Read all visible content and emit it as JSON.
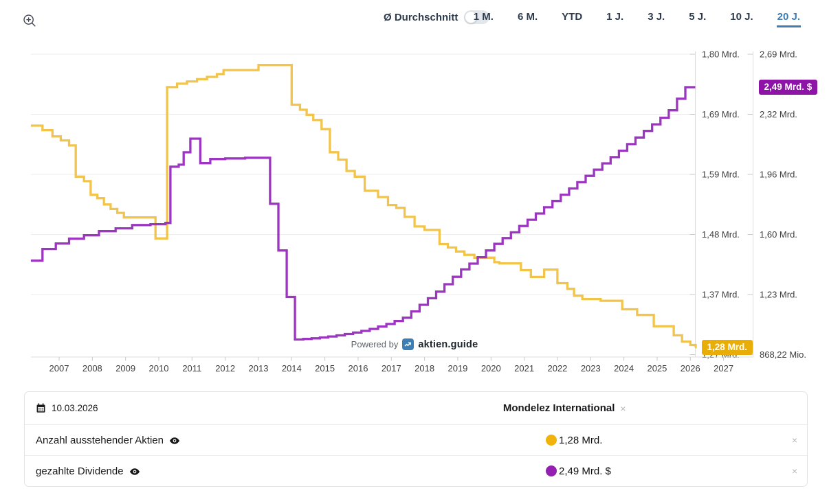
{
  "colors": {
    "accent_blue": "#3e7cb1",
    "series_yellow": "#f3c44a",
    "series_yellow_strong": "#e9ad08",
    "series_purple": "#9c35bf",
    "series_purple_strong": "#8d14a6",
    "gridline": "#ededed",
    "axis_line": "#dcdcdc",
    "tick": "#c9c9c9",
    "axis_text": "#3d3d3d"
  },
  "toolbar": {
    "average_label": "Ø Durchschnitt",
    "ranges": [
      {
        "label": "1 M.",
        "active": false
      },
      {
        "label": "6 M.",
        "active": false
      },
      {
        "label": "YTD",
        "active": false
      },
      {
        "label": "1 J.",
        "active": false
      },
      {
        "label": "3 J.",
        "active": false
      },
      {
        "label": "5 J.",
        "active": false
      },
      {
        "label": "10 J.",
        "active": false
      },
      {
        "label": "20 J.",
        "active": true
      }
    ]
  },
  "chart_data": {
    "type": "line",
    "step": true,
    "grid": true,
    "x_ticks": [
      2007,
      2008,
      2009,
      2010,
      2011,
      2012,
      2013,
      2014,
      2015,
      2016,
      2017,
      2018,
      2019,
      2020,
      2021,
      2022,
      2023,
      2024,
      2025,
      2026,
      2027
    ],
    "x_range": [
      2006.15,
      2026.16
    ],
    "left_axis": {
      "labels": [
        "1,80 Mrd.",
        "1,69 Mrd.",
        "1,59 Mrd.",
        "1,48 Mrd.",
        "1,37 Mrd.",
        "1,27 Mrd."
      ],
      "min": 1.27,
      "max": 1.8,
      "unit": "Mrd."
    },
    "right_axis": {
      "labels": [
        "2,69 Mrd.",
        "2,32 Mrd.",
        "1,96 Mrd.",
        "1,60 Mrd.",
        "1,23 Mrd.",
        "868,22 Mio."
      ],
      "min": 0.86822,
      "max": 2.69,
      "unit": "Mrd. $"
    },
    "series": [
      {
        "name": "Anzahl ausstehender Aktien",
        "axis": "left",
        "color": "#f3c44a",
        "current_value": "1,28 Mrd.",
        "points": [
          [
            2006.15,
            1.674
          ],
          [
            2006.5,
            1.666
          ],
          [
            2006.8,
            1.655
          ],
          [
            2007.05,
            1.648
          ],
          [
            2007.3,
            1.639
          ],
          [
            2007.5,
            1.584
          ],
          [
            2007.75,
            1.576
          ],
          [
            2007.95,
            1.552
          ],
          [
            2008.15,
            1.546
          ],
          [
            2008.35,
            1.535
          ],
          [
            2008.55,
            1.527
          ],
          [
            2008.75,
            1.52
          ],
          [
            2008.95,
            1.512
          ],
          [
            2009.9,
            1.475
          ],
          [
            2010.25,
            1.742
          ],
          [
            2010.55,
            1.748
          ],
          [
            2010.85,
            1.752
          ],
          [
            2011.15,
            1.756
          ],
          [
            2011.45,
            1.76
          ],
          [
            2011.75,
            1.765
          ],
          [
            2011.95,
            1.772
          ],
          [
            2013.0,
            1.781
          ],
          [
            2014.0,
            1.711
          ],
          [
            2014.25,
            1.702
          ],
          [
            2014.45,
            1.693
          ],
          [
            2014.65,
            1.684
          ],
          [
            2014.9,
            1.668
          ],
          [
            2015.15,
            1.627
          ],
          [
            2015.4,
            1.614
          ],
          [
            2015.65,
            1.594
          ],
          [
            2015.9,
            1.584
          ],
          [
            2016.2,
            1.559
          ],
          [
            2016.6,
            1.548
          ],
          [
            2016.9,
            1.534
          ],
          [
            2017.15,
            1.529
          ],
          [
            2017.4,
            1.513
          ],
          [
            2017.7,
            1.496
          ],
          [
            2018.0,
            1.49
          ],
          [
            2018.45,
            1.465
          ],
          [
            2018.7,
            1.459
          ],
          [
            2018.95,
            1.452
          ],
          [
            2019.2,
            1.446
          ],
          [
            2019.5,
            1.441
          ],
          [
            2020.1,
            1.433
          ],
          [
            2020.25,
            1.431
          ],
          [
            2020.9,
            1.419
          ],
          [
            2021.2,
            1.407
          ],
          [
            2021.6,
            1.42
          ],
          [
            2022.0,
            1.396
          ],
          [
            2022.3,
            1.386
          ],
          [
            2022.5,
            1.374
          ],
          [
            2022.75,
            1.368
          ],
          [
            2023.3,
            1.365
          ],
          [
            2023.95,
            1.35
          ],
          [
            2024.4,
            1.34
          ],
          [
            2024.9,
            1.32
          ],
          [
            2025.5,
            1.304
          ],
          [
            2025.75,
            1.293
          ],
          [
            2026.0,
            1.287
          ],
          [
            2026.16,
            1.283
          ]
        ]
      },
      {
        "name": "gezahlte Dividende",
        "axis": "right",
        "color": "#9c35bf",
        "current_value": "2,49 Mrd. $",
        "points": [
          [
            2006.15,
            1.438
          ],
          [
            2006.5,
            1.509
          ],
          [
            2006.9,
            1.542
          ],
          [
            2007.3,
            1.571
          ],
          [
            2007.75,
            1.592
          ],
          [
            2008.2,
            1.617
          ],
          [
            2008.7,
            1.634
          ],
          [
            2009.2,
            1.654
          ],
          [
            2009.75,
            1.659
          ],
          [
            2010.2,
            1.667
          ],
          [
            2010.35,
            2.008
          ],
          [
            2010.6,
            2.02
          ],
          [
            2010.75,
            2.095
          ],
          [
            2010.95,
            2.178
          ],
          [
            2011.25,
            2.029
          ],
          [
            2011.55,
            2.054
          ],
          [
            2012.0,
            2.058
          ],
          [
            2012.6,
            2.062
          ],
          [
            2013.35,
            1.783
          ],
          [
            2013.6,
            1.5
          ],
          [
            2013.85,
            1.218
          ],
          [
            2014.1,
            0.96
          ],
          [
            2014.35,
            0.963
          ],
          [
            2014.6,
            0.967
          ],
          [
            2014.85,
            0.972
          ],
          [
            2015.1,
            0.978
          ],
          [
            2015.35,
            0.985
          ],
          [
            2015.6,
            0.993
          ],
          [
            2015.85,
            1.002
          ],
          [
            2016.1,
            1.012
          ],
          [
            2016.35,
            1.024
          ],
          [
            2016.6,
            1.038
          ],
          [
            2016.85,
            1.054
          ],
          [
            2017.1,
            1.072
          ],
          [
            2017.35,
            1.092
          ],
          [
            2017.6,
            1.13
          ],
          [
            2017.85,
            1.17
          ],
          [
            2018.1,
            1.21
          ],
          [
            2018.35,
            1.25
          ],
          [
            2018.6,
            1.295
          ],
          [
            2018.85,
            1.34
          ],
          [
            2019.1,
            1.385
          ],
          [
            2019.35,
            1.42
          ],
          [
            2019.6,
            1.459
          ],
          [
            2019.85,
            1.5
          ],
          [
            2020.1,
            1.54
          ],
          [
            2020.35,
            1.575
          ],
          [
            2020.6,
            1.61
          ],
          [
            2020.85,
            1.648
          ],
          [
            2021.1,
            1.686
          ],
          [
            2021.35,
            1.724
          ],
          [
            2021.6,
            1.762
          ],
          [
            2021.85,
            1.8
          ],
          [
            2022.1,
            1.838
          ],
          [
            2022.35,
            1.876
          ],
          [
            2022.6,
            1.914
          ],
          [
            2022.85,
            1.952
          ],
          [
            2023.1,
            1.99
          ],
          [
            2023.35,
            2.028
          ],
          [
            2023.6,
            2.066
          ],
          [
            2023.85,
            2.105
          ],
          [
            2024.1,
            2.145
          ],
          [
            2024.35,
            2.185
          ],
          [
            2024.6,
            2.225
          ],
          [
            2024.85,
            2.265
          ],
          [
            2025.1,
            2.305
          ],
          [
            2025.35,
            2.35
          ],
          [
            2025.6,
            2.42
          ],
          [
            2025.85,
            2.49
          ]
        ]
      }
    ]
  },
  "watermark": {
    "powered_by": "Powered by",
    "brand": "aktien.guide"
  },
  "panel": {
    "date": "10.03.2026",
    "company": "Mondelez International",
    "close_symbol": "×",
    "rows": [
      {
        "label": "Anzahl ausstehender Aktien",
        "value": "1,28 Mrd.",
        "color": "#efb30c"
      },
      {
        "label": "gezahlte Dividende",
        "value": "2,49 Mrd. $",
        "color": "#9320b0"
      }
    ]
  }
}
